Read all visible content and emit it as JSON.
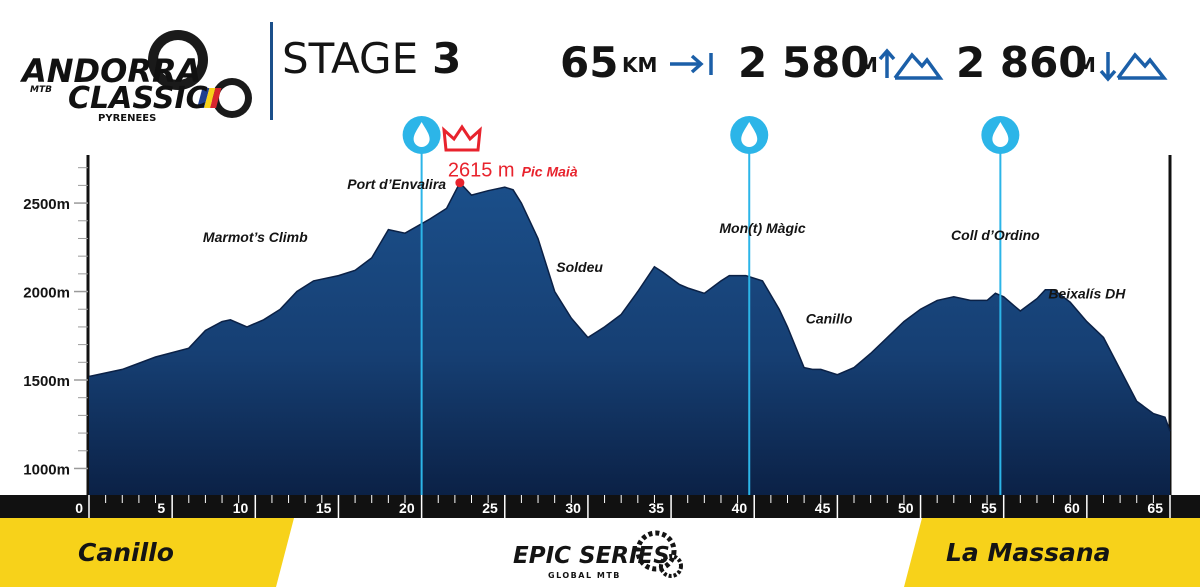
{
  "header": {
    "logo": {
      "line1": "ANDORRA",
      "mtb": "MTB",
      "line2": "CLASSIC",
      "line3": "PYRENEES"
    },
    "stage_label": "STAGE",
    "stage_number": "3",
    "stats": [
      {
        "value": "65",
        "unit": "KM",
        "icon": "distance-arrow-icon"
      },
      {
        "value": "2 580",
        "unit": "M",
        "icon": "ascent-mountain-icon"
      },
      {
        "value": "2 860",
        "unit": "M",
        "icon": "descent-mountain-icon"
      }
    ]
  },
  "colors": {
    "profile": "#1b4f8a",
    "profile_dark": "#0b2146",
    "accent": "#e8232d",
    "water": "#2cb5e8",
    "footer": "#f7d21a",
    "ink": "#141414"
  },
  "chart_data": {
    "type": "area",
    "xlabel": "",
    "ylabel": "",
    "xlim": [
      0,
      65
    ],
    "ylim": [
      850,
      2800
    ],
    "x_ticks": [
      0,
      5,
      10,
      15,
      20,
      25,
      30,
      35,
      40,
      45,
      50,
      55,
      60,
      65
    ],
    "y_ticks": [
      1000,
      1500,
      2000,
      2500
    ],
    "y_tick_labels": [
      "1000m",
      "1500m",
      "2000m",
      "2500m"
    ],
    "grid": false,
    "profile": {
      "x": [
        0,
        2,
        4,
        6,
        7,
        8,
        8.5,
        9.5,
        10.5,
        11.5,
        12.5,
        13.5,
        15,
        16,
        17,
        18,
        19,
        20.5,
        21.5,
        22.3,
        23,
        24,
        25,
        25.5,
        26,
        27,
        28,
        29,
        30,
        30.5,
        31,
        32,
        33,
        34,
        34.5,
        35.5,
        36,
        37,
        38,
        38.5,
        39.5,
        40.5,
        41.5,
        42,
        43,
        43.5,
        44,
        45,
        46,
        47,
        48,
        49,
        50,
        51,
        52,
        53,
        54,
        54.5,
        55,
        56,
        57,
        57.5,
        58,
        59,
        60,
        61,
        62,
        63,
        64,
        64.7,
        65
      ],
      "y": [
        1520,
        1560,
        1630,
        1680,
        1780,
        1830,
        1840,
        1800,
        1840,
        1900,
        2000,
        2060,
        2090,
        2120,
        2190,
        2350,
        2330,
        2410,
        2470,
        2615,
        2545,
        2570,
        2590,
        2575,
        2500,
        2300,
        2000,
        1850,
        1740,
        1770,
        1800,
        1870,
        2000,
        2140,
        2110,
        2040,
        2020,
        1990,
        2060,
        2090,
        2090,
        2060,
        1900,
        1800,
        1570,
        1560,
        1560,
        1530,
        1570,
        1650,
        1740,
        1830,
        1900,
        1950,
        1970,
        1950,
        1950,
        1990,
        1970,
        1890,
        1960,
        2010,
        2010,
        1940,
        1830,
        1740,
        1560,
        1380,
        1310,
        1290,
        1210
      ]
    },
    "annotations": [
      {
        "label": "Marmot’s Climb",
        "x": 10,
        "y": 2280
      },
      {
        "label": "Port d’Envalira",
        "x": 18.5,
        "y": 2580
      },
      {
        "label": "Soldeu",
        "x": 29.5,
        "y": 2110
      },
      {
        "label": "Mon(t) Màgic",
        "x": 40.5,
        "y": 2330
      },
      {
        "label": "Canillo",
        "x": 44.5,
        "y": 1820
      },
      {
        "label": "Coll d’Ordino",
        "x": 54.5,
        "y": 2290
      },
      {
        "label": "Beixalís DH",
        "x": 60,
        "y": 1960
      }
    ],
    "summit": {
      "x": 22.3,
      "elevation_text": "2615 m",
      "name": "Pic Maià"
    },
    "water_points": [
      20,
      39.7,
      54.8
    ]
  },
  "footer": {
    "start": "Canillo",
    "finish": "La Massana",
    "brand": "EPIC SERIES",
    "brand_sub": "GLOBAL MTB"
  }
}
